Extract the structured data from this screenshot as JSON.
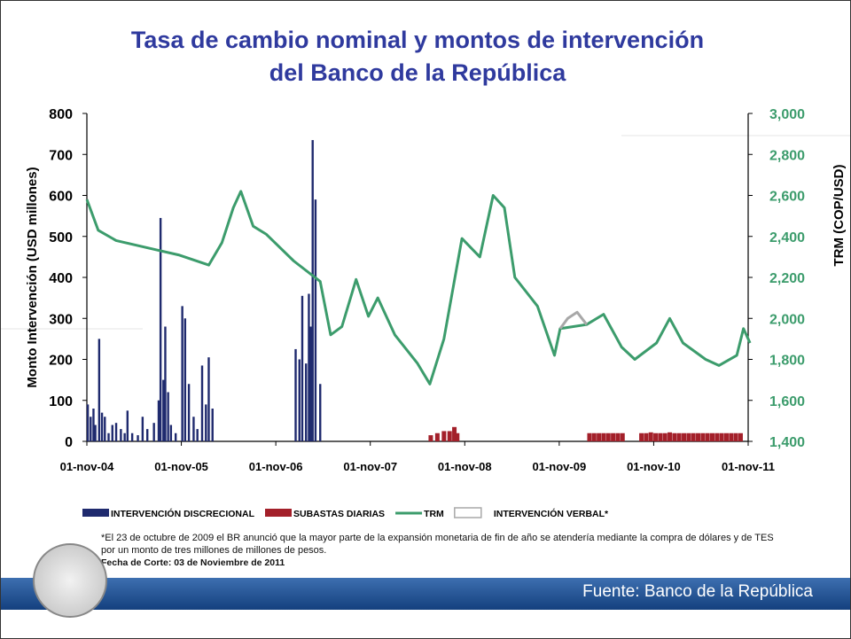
{
  "chart_data": {
    "type": "bar",
    "title": "Tasa de cambio nominal y montos de intervención del Banco de la República",
    "ylabel": "Monto Intervención (USD millones)",
    "y2label": "TRM (COP/USD)",
    "xlim": [
      2004.83,
      2011.83
    ],
    "xticks": [
      {
        "value": 2004.83,
        "label": "01-nov-04"
      },
      {
        "value": 2005.83,
        "label": "01-nov-05"
      },
      {
        "value": 2006.83,
        "label": "01-nov-06"
      },
      {
        "value": 2007.83,
        "label": "01-nov-07"
      },
      {
        "value": 2008.83,
        "label": "01-nov-08"
      },
      {
        "value": 2009.83,
        "label": "01-nov-09"
      },
      {
        "value": 2010.83,
        "label": "01-nov-10"
      },
      {
        "value": 2011.83,
        "label": "01-nov-11"
      }
    ],
    "ylim": [
      0,
      800
    ],
    "yticks": [
      0,
      100,
      200,
      300,
      400,
      500,
      600,
      700,
      800
    ],
    "y2lim": [
      1400,
      3000
    ],
    "y2ticks": [
      {
        "value": 1400,
        "label": "1,400"
      },
      {
        "value": 1600,
        "label": "1,600"
      },
      {
        "value": 1800,
        "label": "1,800"
      },
      {
        "value": 2000,
        "label": "2,000"
      },
      {
        "value": 2200,
        "label": "2,200"
      },
      {
        "value": 2400,
        "label": "2,400"
      },
      {
        "value": 2600,
        "label": "2,600"
      },
      {
        "value": 2800,
        "label": "2,800"
      },
      {
        "value": 3000,
        "label": "3,000"
      }
    ],
    "series": [
      {
        "name": "INTERVENCIÓN DISCRECIONAL",
        "type": "bar",
        "color": "#1f2a6e",
        "x": [
          2004.84,
          2004.87,
          2004.9,
          2004.92,
          2004.96,
          2004.99,
          2005.02,
          2005.06,
          2005.1,
          2005.14,
          2005.19,
          2005.23,
          2005.26,
          2005.31,
          2005.37,
          2005.42,
          2005.47,
          2005.54,
          2005.59,
          2005.61,
          2005.64,
          2005.66,
          2005.69,
          2005.72,
          2005.77,
          2005.84,
          2005.87,
          2005.91,
          2005.96,
          2006.0,
          2006.05,
          2006.09,
          2006.12,
          2006.16,
          2007.04,
          2007.08,
          2007.11,
          2007.15,
          2007.18,
          2007.2,
          2007.22,
          2007.25,
          2007.3
        ],
        "values": [
          90,
          60,
          80,
          40,
          250,
          70,
          60,
          20,
          40,
          45,
          30,
          20,
          75,
          20,
          15,
          60,
          30,
          45,
          100,
          545,
          150,
          280,
          120,
          40,
          20,
          330,
          300,
          140,
          60,
          30,
          185,
          90,
          205,
          80,
          225,
          200,
          355,
          190,
          360,
          280,
          735,
          590,
          140
        ]
      },
      {
        "name": "SUBASTAS DIARIAS",
        "type": "bar",
        "color": "#a3202a",
        "x": [
          2008.47,
          2008.54,
          2008.61,
          2008.67,
          2008.72,
          2008.75,
          2010.15,
          2010.2,
          2010.25,
          2010.3,
          2010.35,
          2010.4,
          2010.45,
          2010.5,
          2010.7,
          2010.75,
          2010.8,
          2010.85,
          2010.9,
          2010.95,
          2011.0,
          2011.05,
          2011.1,
          2011.15,
          2011.2,
          2011.25,
          2011.3,
          2011.35,
          2011.4,
          2011.45,
          2011.5,
          2011.55,
          2011.6,
          2011.65,
          2011.7,
          2011.75
        ],
        "values": [
          15,
          20,
          25,
          25,
          35,
          20,
          20,
          20,
          20,
          20,
          20,
          20,
          20,
          20,
          20,
          20,
          22,
          20,
          20,
          20,
          22,
          20,
          20,
          20,
          20,
          20,
          20,
          20,
          20,
          20,
          20,
          20,
          20,
          20,
          20,
          20
        ]
      },
      {
        "name": "TRM",
        "type": "line",
        "axis": "y2",
        "color": "#3c9c6c",
        "x": [
          2004.83,
          2004.95,
          2005.14,
          2005.51,
          2005.8,
          2006.12,
          2006.26,
          2006.38,
          2006.46,
          2006.59,
          2006.73,
          2007.02,
          2007.3,
          2007.41,
          2007.53,
          2007.68,
          2007.81,
          2007.91,
          2008.09,
          2008.33,
          2008.46,
          2008.61,
          2008.8,
          2008.99,
          2009.13,
          2009.25,
          2009.36,
          2009.6,
          2009.78,
          2009.84,
          2010.12,
          2010.3,
          2010.49,
          2010.63,
          2010.86,
          2011.0,
          2011.14,
          2011.38,
          2011.52,
          2011.71,
          2011.78,
          2011.85
        ],
        "values": [
          2580,
          2430,
          2380,
          2340,
          2310,
          2260,
          2370,
          2540,
          2620,
          2450,
          2410,
          2280,
          2180,
          1920,
          1960,
          2190,
          2010,
          2100,
          1920,
          1780,
          1680,
          1900,
          2390,
          2300,
          2600,
          2540,
          2200,
          2060,
          1820,
          1950,
          1970,
          2020,
          1860,
          1800,
          1880,
          2000,
          1880,
          1800,
          1770,
          1820,
          1950,
          1880
        ]
      },
      {
        "name": "INTERVENCIÓN VERBAL*",
        "type": "line",
        "axis": "y2",
        "color": "#a8a8a8",
        "x": [
          2009.84,
          2009.92,
          2010.02,
          2010.12
        ],
        "values": [
          1950,
          2000,
          2030,
          1970
        ]
      }
    ],
    "footnote": "*El  23 de octubre de 2009 el BR anunció que la mayor parte de la expansión monetaria de fin de año se atendería mediante la compra de dólares y de TES por un monto de tres millones de millones de pesos.",
    "cutoff": "Fecha de Corte: 03 de Noviembre de 2011",
    "source": "Fuente: Banco de la República"
  }
}
